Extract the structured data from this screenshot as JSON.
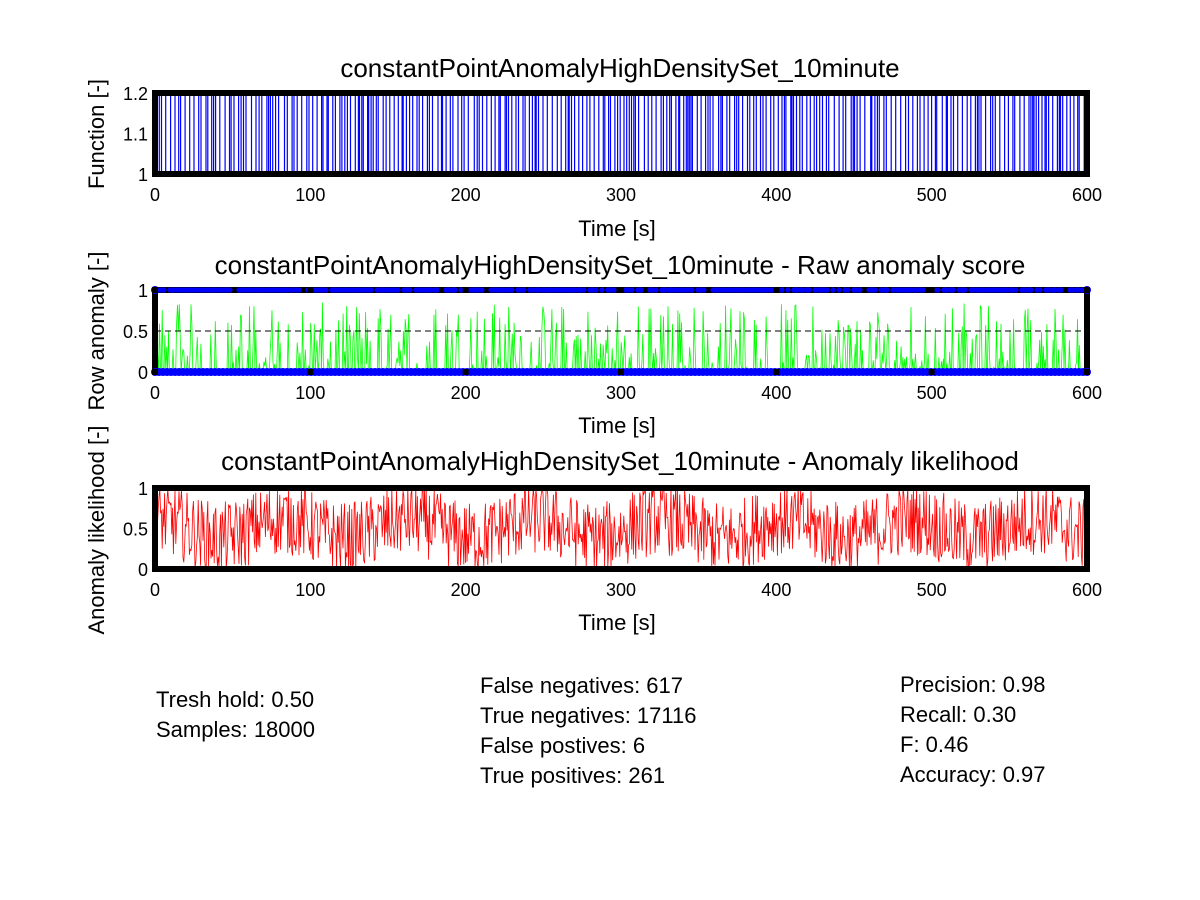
{
  "chart_data": [
    {
      "type": "line",
      "title": "constantPointAnomalyHighDensitySet_10minute",
      "xlabel": "Time [s]",
      "ylabel": "Function [-]",
      "xlim": [
        0,
        600
      ],
      "ylim": [
        1,
        1.2
      ],
      "xticks": [
        "0",
        "100",
        "200",
        "300",
        "400",
        "500",
        "600"
      ],
      "yticks": [
        "1",
        "1.1",
        "1.2"
      ],
      "grid": false,
      "series": [
        {
          "color": "#0000ff",
          "values_description": "signal switches between 1 and 1.2"
        }
      ]
    },
    {
      "type": "line",
      "title": "constantPointAnomalyHighDensitySet_10minute - Raw anomaly score",
      "xlabel": "Time [s]",
      "ylabel": "Row anomaly [-]",
      "xlim": [
        0,
        600
      ],
      "ylim": [
        0,
        1
      ],
      "xticks": [
        "0",
        "100",
        "200",
        "300",
        "400",
        "500",
        "600"
      ],
      "yticks": [
        "0",
        "0.5",
        "1"
      ],
      "threshold": 0.5,
      "grid": false,
      "series": [
        {
          "color": "#00ff00",
          "values_description": "raw anomaly score spikes, mostly below 0.85"
        },
        {
          "color": "#0000ff",
          "values_description": "marker dots at 0 and 1"
        }
      ]
    },
    {
      "type": "line",
      "title": "constantPointAnomalyHighDensitySet_10minute - Anomaly likelihood",
      "xlabel": "Time [s]",
      "ylabel": "Anomaly likelihood [-]",
      "xlim": [
        0,
        600
      ],
      "ylim": [
        0,
        1
      ],
      "xticks": [
        "0",
        "100",
        "200",
        "300",
        "400",
        "500",
        "600"
      ],
      "yticks": [
        "0",
        "0.5",
        "1"
      ],
      "grid": false,
      "series": [
        {
          "color": "#ff0000",
          "values_description": "anomaly likelihood fluctuating between 0 and 1"
        }
      ]
    }
  ],
  "stats": {
    "threshold": "Tresh hold: 0.50",
    "samples": "Samples: 18000",
    "false_negatives": "False negatives: 617",
    "true_negatives": "True negatives: 17116",
    "false_positives": "False postives: 6",
    "true_positives": "True positives: 261",
    "precision": "Precision: 0.98",
    "recall": "Recall: 0.30",
    "f": "F: 0.46",
    "accuracy": "Accuracy: 0.97"
  }
}
